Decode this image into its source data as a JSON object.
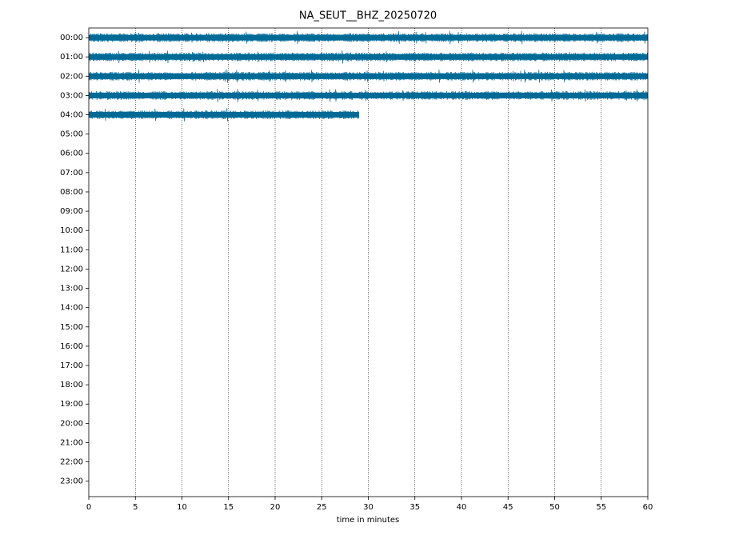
{
  "chart_data": {
    "type": "dayplot",
    "title": "NA_SEUT__BHZ_20250720",
    "xlabel": "time in minutes",
    "categories": [
      "00:00",
      "01:00",
      "02:00",
      "03:00",
      "04:00",
      "05:00",
      "06:00",
      "07:00",
      "08:00",
      "09:00",
      "10:00",
      "11:00",
      "12:00",
      "13:00",
      "14:00",
      "15:00",
      "16:00",
      "17:00",
      "18:00",
      "19:00",
      "20:00",
      "21:00",
      "22:00",
      "23:00"
    ],
    "values": [
      60,
      60,
      60,
      60,
      29,
      null,
      null,
      null,
      null,
      null,
      null,
      null,
      null,
      null,
      null,
      null,
      null,
      null,
      null,
      null,
      null,
      null,
      null,
      null
    ],
    "color": "#006a96",
    "xlim": [
      0,
      60
    ],
    "xticks": [
      0,
      5,
      10,
      15,
      20,
      25,
      30,
      35,
      40,
      45,
      50,
      55,
      60
    ],
    "grid": true
  }
}
